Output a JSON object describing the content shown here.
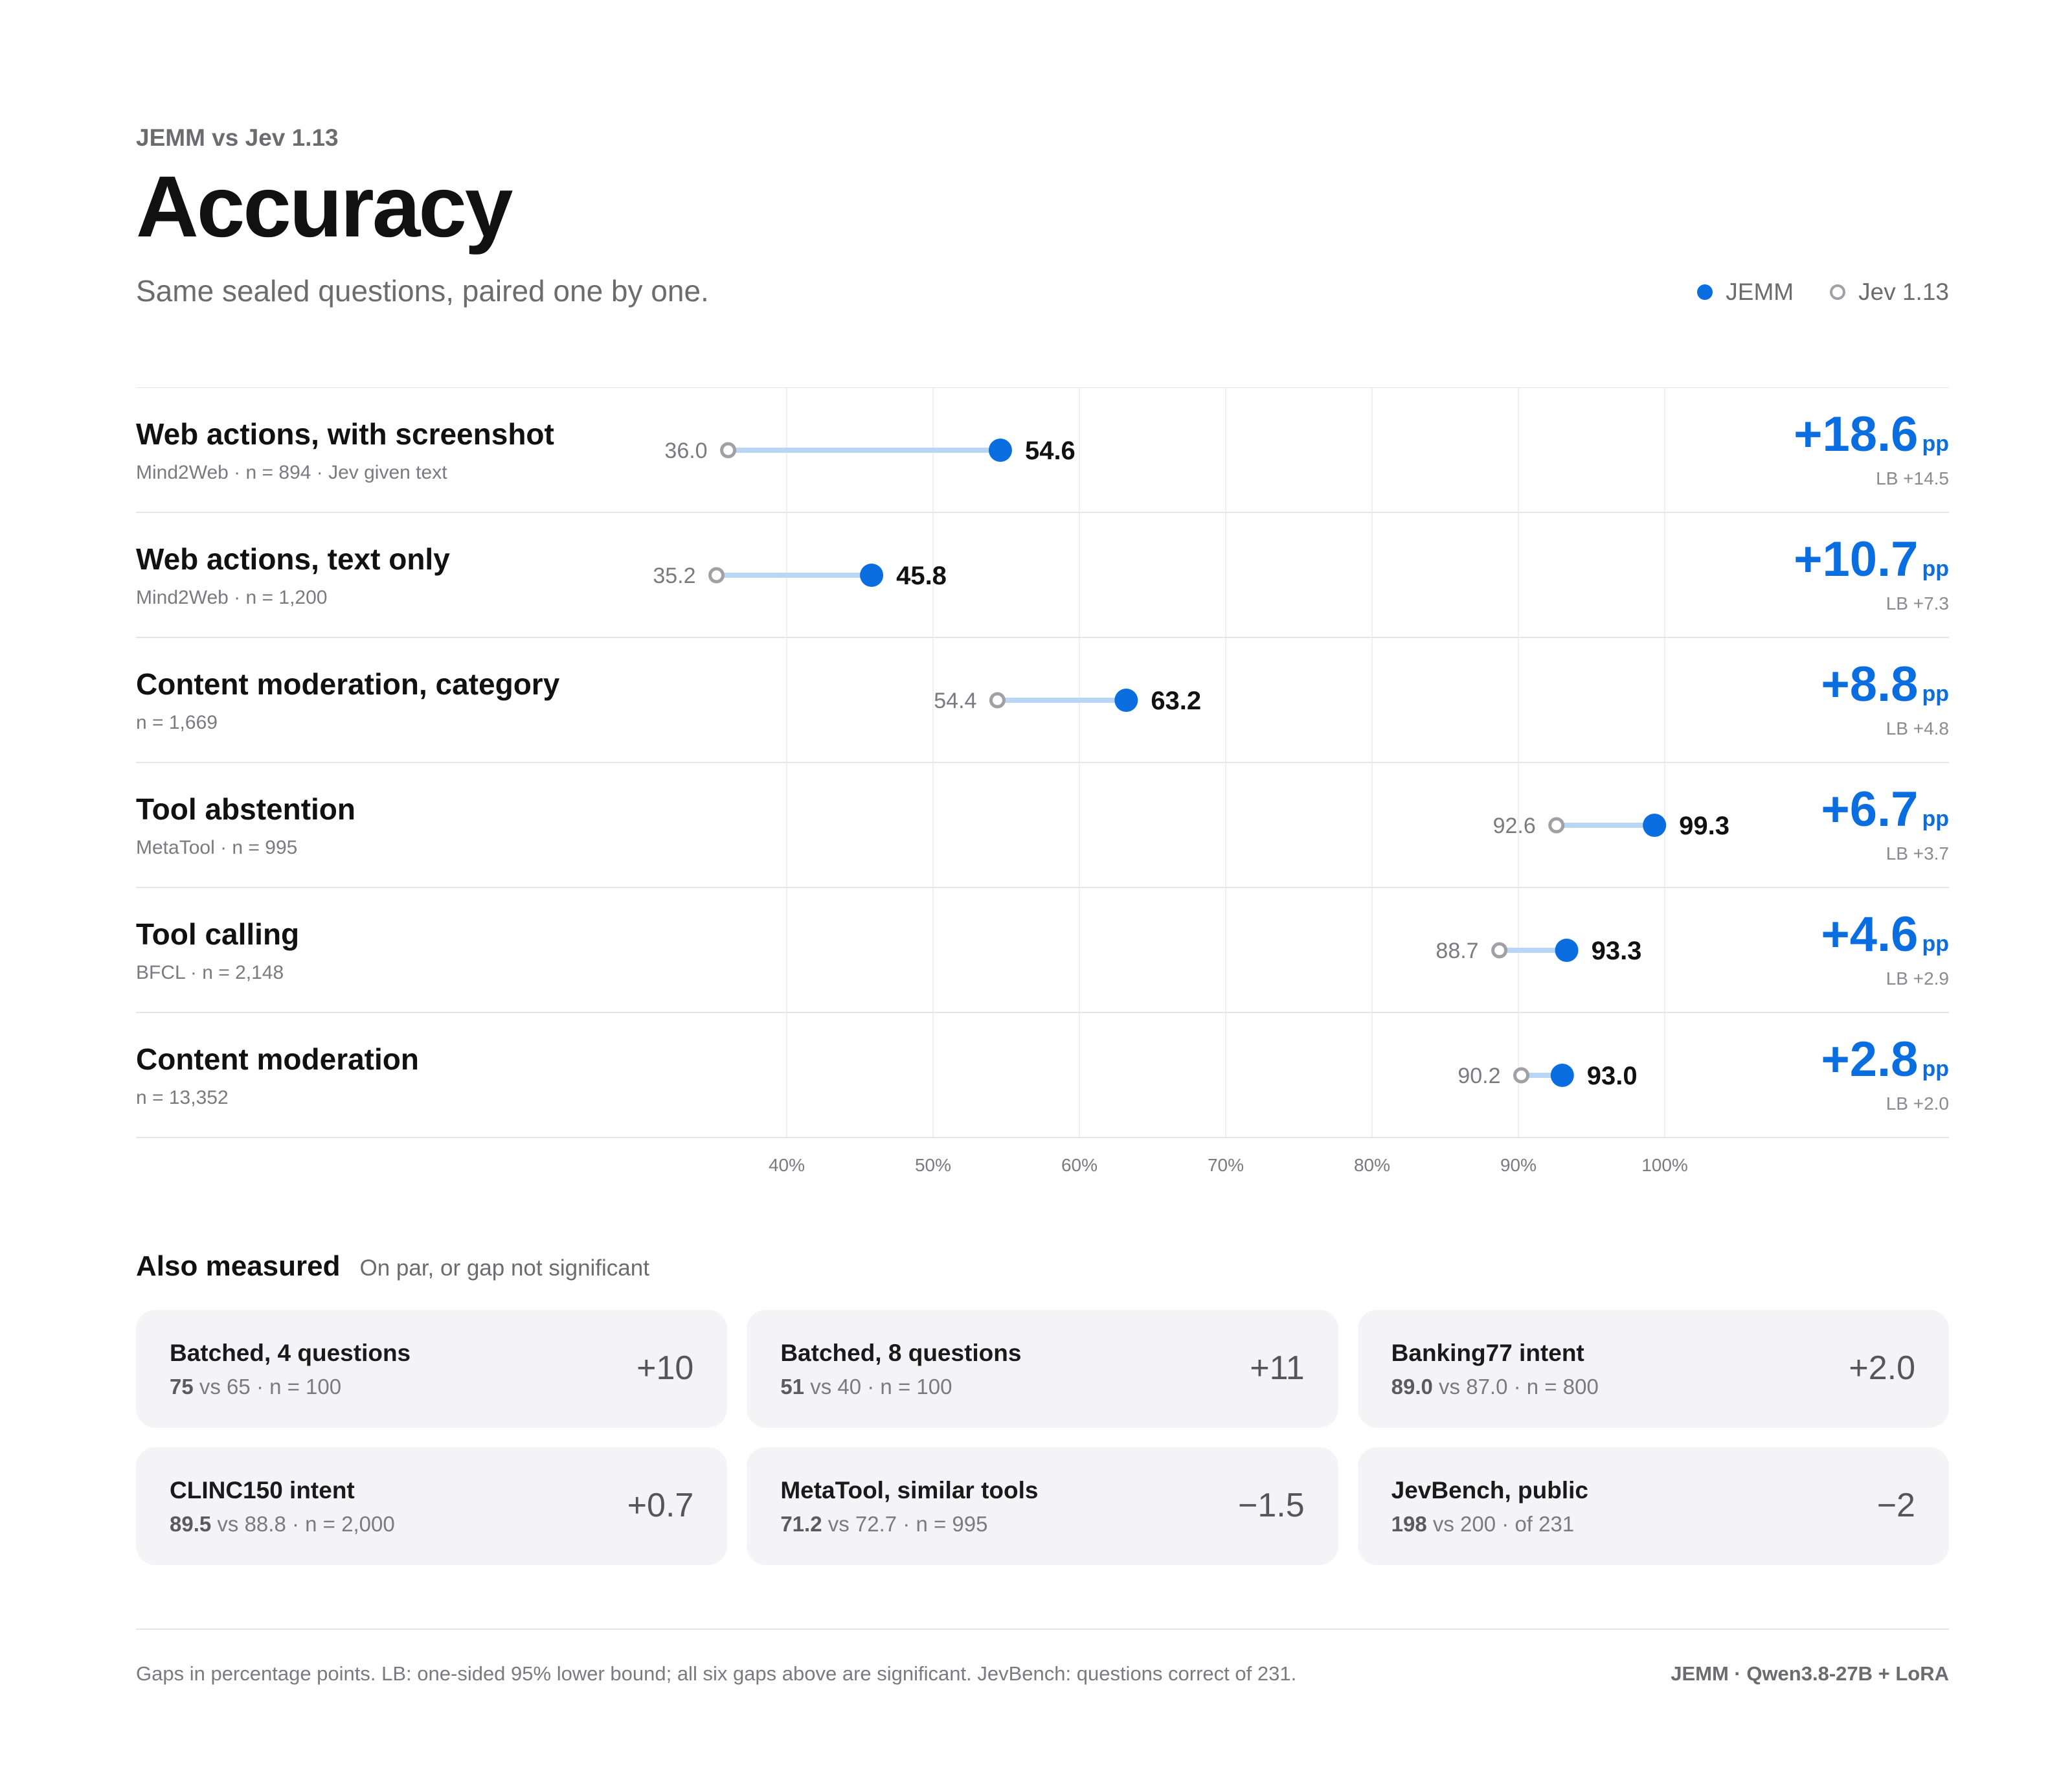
{
  "header": {
    "eyebrow": "JEMM vs Jev 1.13",
    "title": "Accuracy",
    "subtitle": "Same sealed questions, paired one by one."
  },
  "legend": {
    "jemm": "JEMM",
    "jev": "Jev 1.13"
  },
  "colors": {
    "jemm": "#0a6ee0",
    "link": "#b9d7f5",
    "jev": "#a0a0a6",
    "gap": "#0a6ee0"
  },
  "chart_data": {
    "type": "dumbbell",
    "x_unit": "%",
    "xlim": [
      31,
      102
    ],
    "ticks": [
      {
        "value": 40,
        "label": "40%"
      },
      {
        "value": 50,
        "label": "50%"
      },
      {
        "value": 60,
        "label": "60%"
      },
      {
        "value": 70,
        "label": "70%"
      },
      {
        "value": 80,
        "label": "80%"
      },
      {
        "value": 90,
        "label": "90%"
      },
      {
        "value": 100,
        "label": "100%"
      }
    ],
    "grid": true,
    "legend_position": "top-right",
    "rows": [
      {
        "label": "Web actions, with screenshot",
        "meta": "Mind2Web · n = 894 · Jev given text",
        "jev": 36.0,
        "jev_label": "36.0",
        "jemm": 54.6,
        "jemm_label": "54.6",
        "gap": "+18.6",
        "unit": "pp",
        "lb": "LB +14.5"
      },
      {
        "label": "Web actions, text only",
        "meta": "Mind2Web · n = 1,200",
        "jev": 35.2,
        "jev_label": "35.2",
        "jemm": 45.8,
        "jemm_label": "45.8",
        "gap": "+10.7",
        "unit": "pp",
        "lb": "LB +7.3"
      },
      {
        "label": "Content moderation, category",
        "meta": "n = 1,669",
        "jev": 54.4,
        "jev_label": "54.4",
        "jemm": 63.2,
        "jemm_label": "63.2",
        "gap": "+8.8",
        "unit": "pp",
        "lb": "LB +4.8"
      },
      {
        "label": "Tool abstention",
        "meta": "MetaTool · n = 995",
        "jev": 92.6,
        "jev_label": "92.6",
        "jemm": 99.3,
        "jemm_label": "99.3",
        "gap": "+6.7",
        "unit": "pp",
        "lb": "LB +3.7"
      },
      {
        "label": "Tool calling",
        "meta": "BFCL · n = 2,148",
        "jev": 88.7,
        "jev_label": "88.7",
        "jemm": 93.3,
        "jemm_label": "93.3",
        "gap": "+4.6",
        "unit": "pp",
        "lb": "LB +2.9"
      },
      {
        "label": "Content moderation",
        "meta": "n = 13,352",
        "jev": 90.2,
        "jev_label": "90.2",
        "jemm": 93.0,
        "jemm_label": "93.0",
        "gap": "+2.8",
        "unit": "pp",
        "lb": "LB +2.0"
      }
    ]
  },
  "also": {
    "title": "Also measured",
    "subtitle": "On par, or gap not significant",
    "cards": [
      {
        "title": "Batched, 4 questions",
        "a": "75",
        "vs": "vs 65",
        "rest": "· n = 100",
        "delta": "+10"
      },
      {
        "title": "Batched, 8 questions",
        "a": "51",
        "vs": "vs 40",
        "rest": "· n = 100",
        "delta": "+11"
      },
      {
        "title": "Banking77 intent",
        "a": "89.0",
        "vs": "vs 87.0",
        "rest": "· n = 800",
        "delta": "+2.0"
      },
      {
        "title": "CLINC150 intent",
        "a": "89.5",
        "vs": "vs 88.8",
        "rest": "· n = 2,000",
        "delta": "+0.7"
      },
      {
        "title": "MetaTool, similar tools",
        "a": "71.2",
        "vs": "vs 72.7",
        "rest": "· n = 995",
        "delta": "−1.5"
      },
      {
        "title": "JevBench, public",
        "a": "198",
        "vs": "vs 200",
        "rest": "· of 231",
        "delta": "−2"
      }
    ]
  },
  "footer": {
    "note": "Gaps in percentage points. LB: one-sided 95% lower bound; all six gaps above are significant. JevBench: questions correct of 231.",
    "credit": "JEMM · Qwen3.8-27B + LoRA"
  }
}
